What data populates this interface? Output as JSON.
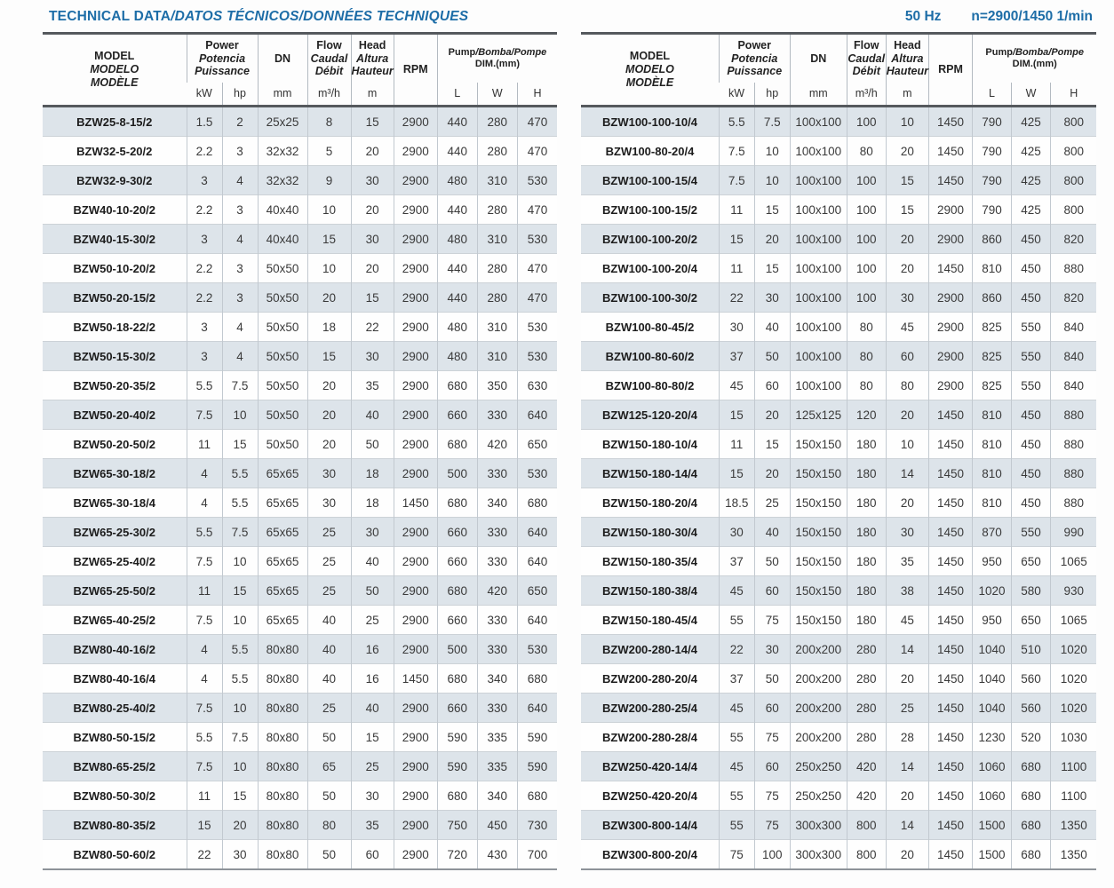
{
  "page": {
    "title_en": "TECHNICAL DATA",
    "title_rest": "/DATOS TÉCNICOS/DONNÉES TECHNIQUES",
    "frequency": "50 Hz",
    "speed": "n=2900/1450 1/min"
  },
  "colors": {
    "accent_blue": "#1d6da7",
    "row_shade": "#dde4ea",
    "header_rule": "#55595d"
  },
  "header": {
    "model_en": "MODEL",
    "model_es": "MODELO",
    "model_fr": "MODÈLE",
    "power_en": "Power",
    "power_es": "Potencia",
    "power_fr": "Puissance",
    "dn": "DN",
    "flow_en": "Flow",
    "flow_es": "Caudal",
    "flow_fr": "Débit",
    "head_en": "Head",
    "head_es": "Altura",
    "head_fr": "Hauteur",
    "rpm": "RPM",
    "pump_en": "Pump",
    "pump_rest": "/Bomba/Pompe",
    "pump_dim": "DIM.(mm)",
    "units": {
      "kw": "kW",
      "hp": "hp",
      "mm": "mm",
      "flow": "m³/h",
      "head": "m",
      "l": "L",
      "w": "W",
      "h": "H"
    }
  },
  "left_table": {
    "rows": [
      [
        "BZW25-8-15/2",
        "1.5",
        "2",
        "25x25",
        "8",
        "15",
        "2900",
        "440",
        "280",
        "470"
      ],
      [
        "BZW32-5-20/2",
        "2.2",
        "3",
        "32x32",
        "5",
        "20",
        "2900",
        "440",
        "280",
        "470"
      ],
      [
        "BZW32-9-30/2",
        "3",
        "4",
        "32x32",
        "9",
        "30",
        "2900",
        "480",
        "310",
        "530"
      ],
      [
        "BZW40-10-20/2",
        "2.2",
        "3",
        "40x40",
        "10",
        "20",
        "2900",
        "440",
        "280",
        "470"
      ],
      [
        "BZW40-15-30/2",
        "3",
        "4",
        "40x40",
        "15",
        "30",
        "2900",
        "480",
        "310",
        "530"
      ],
      [
        "BZW50-10-20/2",
        "2.2",
        "3",
        "50x50",
        "10",
        "20",
        "2900",
        "440",
        "280",
        "470"
      ],
      [
        "BZW50-20-15/2",
        "2.2",
        "3",
        "50x50",
        "20",
        "15",
        "2900",
        "440",
        "280",
        "470"
      ],
      [
        "BZW50-18-22/2",
        "3",
        "4",
        "50x50",
        "18",
        "22",
        "2900",
        "480",
        "310",
        "530"
      ],
      [
        "BZW50-15-30/2",
        "3",
        "4",
        "50x50",
        "15",
        "30",
        "2900",
        "480",
        "310",
        "530"
      ],
      [
        "BZW50-20-35/2",
        "5.5",
        "7.5",
        "50x50",
        "20",
        "35",
        "2900",
        "680",
        "350",
        "630"
      ],
      [
        "BZW50-20-40/2",
        "7.5",
        "10",
        "50x50",
        "20",
        "40",
        "2900",
        "660",
        "330",
        "640"
      ],
      [
        "BZW50-20-50/2",
        "11",
        "15",
        "50x50",
        "20",
        "50",
        "2900",
        "680",
        "420",
        "650"
      ],
      [
        "BZW65-30-18/2",
        "4",
        "5.5",
        "65x65",
        "30",
        "18",
        "2900",
        "500",
        "330",
        "530"
      ],
      [
        "BZW65-30-18/4",
        "4",
        "5.5",
        "65x65",
        "30",
        "18",
        "1450",
        "680",
        "340",
        "680"
      ],
      [
        "BZW65-25-30/2",
        "5.5",
        "7.5",
        "65x65",
        "25",
        "30",
        "2900",
        "660",
        "330",
        "640"
      ],
      [
        "BZW65-25-40/2",
        "7.5",
        "10",
        "65x65",
        "25",
        "40",
        "2900",
        "660",
        "330",
        "640"
      ],
      [
        "BZW65-25-50/2",
        "11",
        "15",
        "65x65",
        "25",
        "50",
        "2900",
        "680",
        "420",
        "650"
      ],
      [
        "BZW65-40-25/2",
        "7.5",
        "10",
        "65x65",
        "40",
        "25",
        "2900",
        "660",
        "330",
        "640"
      ],
      [
        "BZW80-40-16/2",
        "4",
        "5.5",
        "80x80",
        "40",
        "16",
        "2900",
        "500",
        "330",
        "530"
      ],
      [
        "BZW80-40-16/4",
        "4",
        "5.5",
        "80x80",
        "40",
        "16",
        "1450",
        "680",
        "340",
        "680"
      ],
      [
        "BZW80-25-40/2",
        "7.5",
        "10",
        "80x80",
        "25",
        "40",
        "2900",
        "660",
        "330",
        "640"
      ],
      [
        "BZW80-50-15/2",
        "5.5",
        "7.5",
        "80x80",
        "50",
        "15",
        "2900",
        "590",
        "335",
        "590"
      ],
      [
        "BZW80-65-25/2",
        "7.5",
        "10",
        "80x80",
        "65",
        "25",
        "2900",
        "590",
        "335",
        "590"
      ],
      [
        "BZW80-50-30/2",
        "11",
        "15",
        "80x80",
        "50",
        "30",
        "2900",
        "680",
        "340",
        "680"
      ],
      [
        "BZW80-80-35/2",
        "15",
        "20",
        "80x80",
        "80",
        "35",
        "2900",
        "750",
        "450",
        "730"
      ],
      [
        "BZW80-50-60/2",
        "22",
        "30",
        "80x80",
        "50",
        "60",
        "2900",
        "720",
        "430",
        "700"
      ]
    ]
  },
  "right_table": {
    "rows": [
      [
        "BZW100-100-10/4",
        "5.5",
        "7.5",
        "100x100",
        "100",
        "10",
        "1450",
        "790",
        "425",
        "800"
      ],
      [
        "BZW100-80-20/4",
        "7.5",
        "10",
        "100x100",
        "80",
        "20",
        "1450",
        "790",
        "425",
        "800"
      ],
      [
        "BZW100-100-15/4",
        "7.5",
        "10",
        "100x100",
        "100",
        "15",
        "1450",
        "790",
        "425",
        "800"
      ],
      [
        "BZW100-100-15/2",
        "11",
        "15",
        "100x100",
        "100",
        "15",
        "2900",
        "790",
        "425",
        "800"
      ],
      [
        "BZW100-100-20/2",
        "15",
        "20",
        "100x100",
        "100",
        "20",
        "2900",
        "860",
        "450",
        "820"
      ],
      [
        "BZW100-100-20/4",
        "11",
        "15",
        "100x100",
        "100",
        "20",
        "1450",
        "810",
        "450",
        "880"
      ],
      [
        "BZW100-100-30/2",
        "22",
        "30",
        "100x100",
        "100",
        "30",
        "2900",
        "860",
        "450",
        "820"
      ],
      [
        "BZW100-80-45/2",
        "30",
        "40",
        "100x100",
        "80",
        "45",
        "2900",
        "825",
        "550",
        "840"
      ],
      [
        "BZW100-80-60/2",
        "37",
        "50",
        "100x100",
        "80",
        "60",
        "2900",
        "825",
        "550",
        "840"
      ],
      [
        "BZW100-80-80/2",
        "45",
        "60",
        "100x100",
        "80",
        "80",
        "2900",
        "825",
        "550",
        "840"
      ],
      [
        "BZW125-120-20/4",
        "15",
        "20",
        "125x125",
        "120",
        "20",
        "1450",
        "810",
        "450",
        "880"
      ],
      [
        "BZW150-180-10/4",
        "11",
        "15",
        "150x150",
        "180",
        "10",
        "1450",
        "810",
        "450",
        "880"
      ],
      [
        "BZW150-180-14/4",
        "15",
        "20",
        "150x150",
        "180",
        "14",
        "1450",
        "810",
        "450",
        "880"
      ],
      [
        "BZW150-180-20/4",
        "18.5",
        "25",
        "150x150",
        "180",
        "20",
        "1450",
        "810",
        "450",
        "880"
      ],
      [
        "BZW150-180-30/4",
        "30",
        "40",
        "150x150",
        "180",
        "30",
        "1450",
        "870",
        "550",
        "990"
      ],
      [
        "BZW150-180-35/4",
        "37",
        "50",
        "150x150",
        "180",
        "35",
        "1450",
        "950",
        "650",
        "1065"
      ],
      [
        "BZW150-180-38/4",
        "45",
        "60",
        "150x150",
        "180",
        "38",
        "1450",
        "1020",
        "580",
        "930"
      ],
      [
        "BZW150-180-45/4",
        "55",
        "75",
        "150x150",
        "180",
        "45",
        "1450",
        "950",
        "650",
        "1065"
      ],
      [
        "BZW200-280-14/4",
        "22",
        "30",
        "200x200",
        "280",
        "14",
        "1450",
        "1040",
        "510",
        "1020"
      ],
      [
        "BZW200-280-20/4",
        "37",
        "50",
        "200x200",
        "280",
        "20",
        "1450",
        "1040",
        "560",
        "1020"
      ],
      [
        "BZW200-280-25/4",
        "45",
        "60",
        "200x200",
        "280",
        "25",
        "1450",
        "1040",
        "560",
        "1020"
      ],
      [
        "BZW200-280-28/4",
        "55",
        "75",
        "200x200",
        "280",
        "28",
        "1450",
        "1230",
        "520",
        "1030"
      ],
      [
        "BZW250-420-14/4",
        "45",
        "60",
        "250x250",
        "420",
        "14",
        "1450",
        "1060",
        "680",
        "1100"
      ],
      [
        "BZW250-420-20/4",
        "55",
        "75",
        "250x250",
        "420",
        "20",
        "1450",
        "1060",
        "680",
        "1100"
      ],
      [
        "BZW300-800-14/4",
        "55",
        "75",
        "300x300",
        "800",
        "14",
        "1450",
        "1500",
        "680",
        "1350"
      ],
      [
        "BZW300-800-20/4",
        "75",
        "100",
        "300x300",
        "800",
        "20",
        "1450",
        "1500",
        "680",
        "1350"
      ]
    ]
  }
}
